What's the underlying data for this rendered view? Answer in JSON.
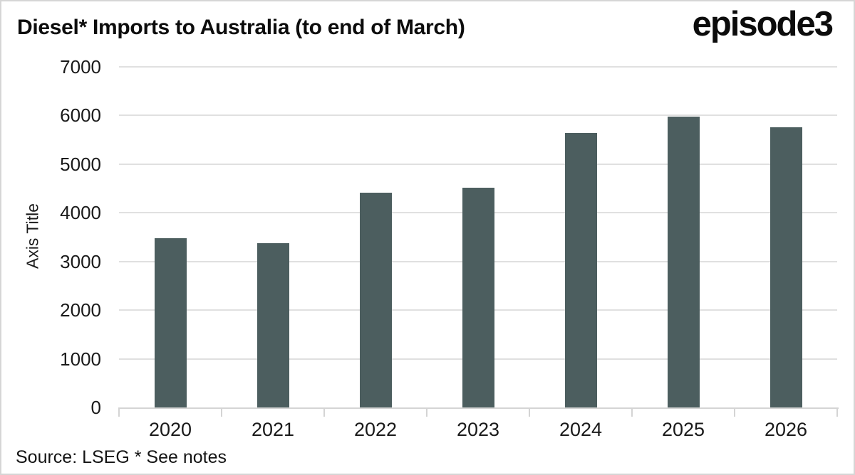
{
  "header": {
    "title": "Diesel* Imports to Australia (to end of March)",
    "logo": "episode3"
  },
  "source_note": "Source: LSEG * See notes",
  "chart_data": {
    "type": "bar",
    "title": "Diesel* Imports to Australia (to end of March)",
    "categories": [
      "2020",
      "2021",
      "2022",
      "2023",
      "2024",
      "2025",
      "2026"
    ],
    "values": [
      3480,
      3380,
      4415,
      4520,
      5645,
      5980,
      5765
    ],
    "xlabel": "",
    "ylabel": "Axis Title",
    "ylim": [
      0,
      7000
    ],
    "yticks": [
      0,
      1000,
      2000,
      3000,
      4000,
      5000,
      6000,
      7000
    ],
    "grid": "horizontal",
    "legend_position": "none",
    "bar_color": "#4c5e5f",
    "gridline_color": "#e0e0e0",
    "axis_color": "#d4d4d4",
    "text_color": "#1a1a1a",
    "background_color": "#ffffff"
  }
}
